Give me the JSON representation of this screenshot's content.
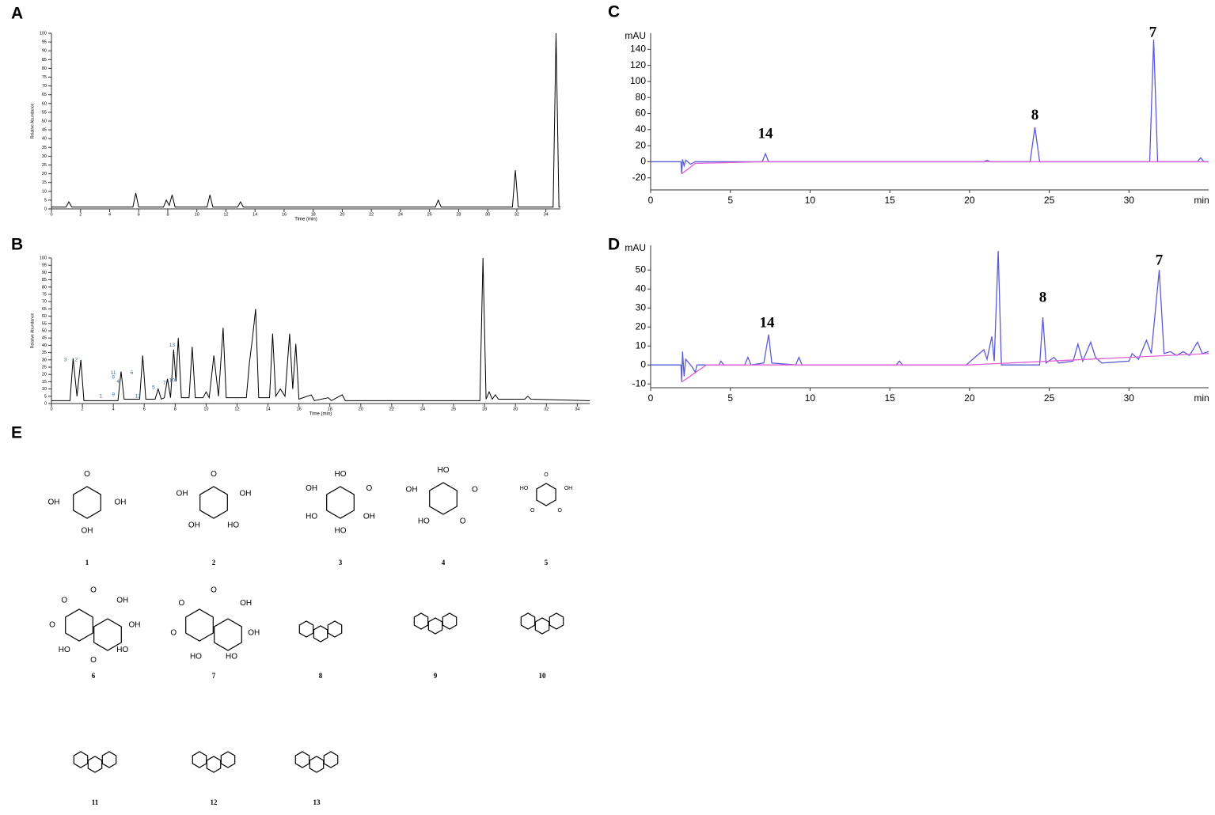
{
  "chart_data": [
    {
      "type": "line",
      "title": "A",
      "x_label": "Time (min)",
      "y_label": "Relative Abundance",
      "xlim": [
        0,
        35
      ],
      "ylim": [
        0,
        100
      ],
      "xticks": [
        0,
        2,
        4,
        6,
        8,
        10,
        12,
        14,
        16,
        18,
        20,
        22,
        24,
        26,
        28,
        30,
        32,
        34
      ],
      "yticks": [
        0,
        5,
        10,
        15,
        20,
        25,
        30,
        35,
        40,
        45,
        50,
        55,
        60,
        65,
        70,
        75,
        80,
        85,
        90,
        95,
        100
      ],
      "series": [
        {
          "color": "#000000",
          "x": [
            0,
            1.0,
            1.2,
            1.4,
            5.6,
            5.8,
            6.0,
            7.7,
            7.9,
            8.1,
            8.3,
            8.5,
            10.7,
            10.9,
            11.1,
            12.8,
            13.0,
            13.2,
            26.4,
            26.6,
            26.8,
            31.7,
            31.9,
            32.1,
            34.5,
            34.7,
            34.9,
            35
          ],
          "values": [
            1,
            1,
            4,
            1,
            1,
            9,
            1,
            1,
            5,
            2,
            8,
            1,
            1,
            8,
            1,
            1,
            4,
            1,
            1,
            5,
            1,
            1,
            22,
            1,
            1,
            100,
            1,
            1
          ]
        }
      ]
    },
    {
      "type": "line",
      "title": "B",
      "x_label": "Time (min)",
      "y_label": "Relative Abundance",
      "xlim": [
        0,
        34.8
      ],
      "ylim": [
        0,
        100
      ],
      "xticks": [
        0,
        2,
        4,
        6,
        8,
        10,
        12,
        14,
        16,
        18,
        20,
        22,
        24,
        26,
        28,
        30,
        32,
        34
      ],
      "yticks": [
        0,
        5,
        10,
        15,
        20,
        25,
        30,
        35,
        40,
        45,
        50,
        55,
        60,
        65,
        70,
        75,
        80,
        85,
        90,
        95,
        100
      ],
      "annotations": [
        "3",
        "2",
        "11",
        "8",
        "4",
        "6",
        "1",
        "9",
        "12",
        "5",
        "7",
        "10",
        "13"
      ],
      "series": [
        {
          "color": "#000000",
          "x": [
            0,
            1.2,
            1.4,
            1.65,
            1.9,
            2.1,
            4.3,
            4.5,
            4.7,
            5.7,
            5.9,
            6.1,
            6.7,
            6.9,
            7.1,
            7.3,
            7.5,
            7.7,
            7.9,
            8.05,
            8.2,
            8.4,
            8.9,
            9.1,
            9.3,
            9.8,
            10.0,
            10.2,
            10.5,
            10.8,
            11.1,
            11.3,
            12.6,
            12.8,
            13.0,
            13.2,
            13.4,
            14.1,
            14.3,
            14.5,
            14.8,
            15.1,
            15.4,
            15.6,
            15.8,
            16.0,
            16.8,
            17.0,
            17.9,
            18.1,
            18.8,
            19.0,
            27.7,
            27.9,
            28.1,
            28.3,
            28.5,
            28.7,
            28.9,
            30.6,
            30.8,
            31.0,
            34.8
          ],
          "values": [
            2,
            2,
            31,
            5,
            30,
            2,
            2,
            22,
            3,
            3,
            33,
            3,
            3,
            10,
            3,
            4,
            17,
            4,
            37,
            15,
            45,
            4,
            4,
            39,
            4,
            4,
            8,
            4,
            33,
            5,
            52,
            4,
            4,
            28,
            45,
            65,
            4,
            4,
            48,
            5,
            10,
            5,
            48,
            10,
            41,
            3,
            6,
            2,
            4,
            2,
            6,
            2,
            2,
            100,
            3,
            8,
            3,
            6,
            3,
            3,
            5,
            3,
            2
          ]
        }
      ]
    },
    {
      "type": "line",
      "title": "C",
      "x_label": "min",
      "y_label": "mAU",
      "xlim": [
        0,
        35
      ],
      "ylim": [
        -35,
        160
      ],
      "xticks": [
        0,
        5,
        10,
        15,
        20,
        25,
        30
      ],
      "yticks": [
        -20,
        0,
        20,
        40,
        60,
        80,
        100,
        120,
        140
      ],
      "annotations": [
        "14",
        "8",
        "7"
      ],
      "series": [
        {
          "color": "#5b5bd6",
          "x": [
            0,
            1.9,
            1.95,
            2.0,
            2.1,
            2.2,
            2.5,
            2.7,
            2.8,
            7.0,
            7.2,
            7.4,
            20.9,
            21.1,
            21.3,
            23.8,
            24.1,
            24.4,
            31.3,
            31.55,
            31.8,
            34.3,
            34.5,
            34.7,
            35
          ],
          "values": [
            0,
            0,
            -15,
            3,
            -5,
            2,
            -3,
            -1,
            0,
            0,
            10,
            0,
            0,
            2,
            0,
            0,
            43,
            0,
            0,
            152,
            0,
            0,
            5,
            0,
            0
          ]
        },
        {
          "color": "#e060d8",
          "x": [
            1.95,
            2.8,
            7.0,
            35
          ],
          "values": [
            -15,
            -2,
            0,
            0
          ]
        }
      ]
    },
    {
      "type": "line",
      "title": "D",
      "x_label": "min",
      "y_label": "mAU",
      "xlim": [
        0,
        35
      ],
      "ylim": [
        -12,
        63
      ],
      "xticks": [
        0,
        5,
        10,
        15,
        20,
        25,
        30
      ],
      "yticks": [
        -10,
        0,
        10,
        20,
        30,
        40,
        50
      ],
      "annotations": [
        "14",
        "8",
        "7"
      ],
      "series": [
        {
          "color": "#5b5bd6",
          "x": [
            0,
            1.9,
            1.95,
            2.0,
            2.1,
            2.2,
            2.6,
            2.8,
            2.9,
            4.3,
            4.4,
            4.6,
            5.9,
            6.1,
            6.3,
            7.1,
            7.4,
            7.6,
            9.1,
            9.3,
            9.5,
            15.4,
            15.6,
            15.8,
            19.8,
            20.2,
            20.9,
            21.1,
            21.4,
            21.55,
            21.8,
            22.0,
            24.4,
            24.6,
            24.8,
            25.3,
            25.6,
            26.5,
            26.8,
            27.1,
            27.6,
            27.9,
            28.3,
            30.0,
            30.2,
            30.6,
            31.1,
            31.4,
            31.9,
            32.2,
            32.6,
            33.0,
            33.4,
            33.8,
            34.3,
            34.6,
            35
          ],
          "values": [
            0,
            0,
            -9,
            7,
            -6,
            3,
            -1,
            -4,
            0,
            0,
            2,
            0,
            0,
            4,
            0,
            1,
            16,
            1,
            0,
            4,
            0,
            0,
            2,
            0,
            0,
            3,
            8,
            3,
            15,
            2,
            60,
            0,
            0,
            25,
            1,
            4,
            1,
            2,
            11,
            2,
            12,
            4,
            1,
            2,
            6,
            3,
            13,
            6,
            50,
            6,
            7,
            5,
            7,
            5,
            12,
            6,
            7
          ]
        },
        {
          "color": "#e060d8",
          "x": [
            1.95,
            3.5,
            20,
            35
          ],
          "values": [
            -9,
            0,
            0,
            6
          ]
        }
      ]
    }
  ],
  "structures": {
    "title": "E",
    "items": [
      {
        "number": "1",
        "labels": [
          "O",
          "OH",
          "OH",
          "OH"
        ]
      },
      {
        "number": "2",
        "labels": [
          "O",
          "OH",
          "HO",
          "OH",
          "OH"
        ]
      },
      {
        "number": "3",
        "labels": [
          "HO",
          "O",
          "OH",
          "HO",
          "HO",
          "OH"
        ]
      },
      {
        "number": "4",
        "labels": [
          "HO",
          "O",
          "O",
          "HO",
          "OH"
        ]
      },
      {
        "number": "5",
        "labels": [
          "O",
          "OH",
          "O",
          "O",
          "HO"
        ]
      },
      {
        "number": "6",
        "labels": [
          "O",
          "OH",
          "OH",
          "HO",
          "O",
          "HO",
          "O",
          "O"
        ]
      },
      {
        "number": "7",
        "labels": [
          "O",
          "OH",
          "OH",
          "HO",
          "HO",
          "O",
          "O"
        ]
      },
      {
        "number": "8"
      },
      {
        "number": "9"
      },
      {
        "number": "10"
      },
      {
        "number": "11"
      },
      {
        "number": "12"
      },
      {
        "number": "13"
      }
    ]
  }
}
